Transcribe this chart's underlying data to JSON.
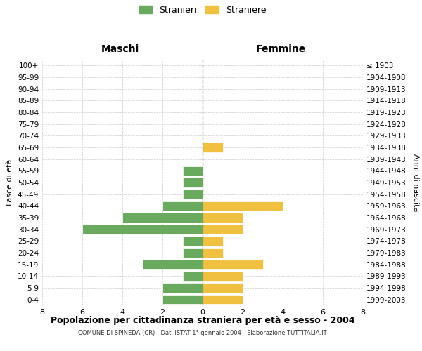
{
  "age_groups": [
    "100+",
    "95-99",
    "90-94",
    "85-89",
    "80-84",
    "75-79",
    "70-74",
    "65-69",
    "60-64",
    "55-59",
    "50-54",
    "45-49",
    "40-44",
    "35-39",
    "30-34",
    "25-29",
    "20-24",
    "15-19",
    "10-14",
    "5-9",
    "0-4"
  ],
  "birth_years": [
    "≤ 1903",
    "1904-1908",
    "1909-1913",
    "1914-1918",
    "1919-1923",
    "1924-1928",
    "1929-1933",
    "1934-1938",
    "1939-1943",
    "1944-1948",
    "1949-1953",
    "1954-1958",
    "1959-1963",
    "1964-1968",
    "1969-1973",
    "1974-1978",
    "1979-1983",
    "1984-1988",
    "1989-1993",
    "1994-1998",
    "1999-2003"
  ],
  "maschi": [
    0,
    0,
    0,
    0,
    0,
    0,
    0,
    0,
    0,
    1,
    1,
    1,
    2,
    4,
    6,
    1,
    1,
    3,
    1,
    2,
    2
  ],
  "femmine": [
    0,
    0,
    0,
    0,
    0,
    0,
    0,
    1,
    0,
    0,
    0,
    0,
    4,
    2,
    2,
    1,
    1,
    3,
    2,
    2,
    2
  ],
  "maschi_color": "#6aaa5e",
  "femmine_color": "#f0c040",
  "title": "Popolazione per cittadinanza straniera per età e sesso - 2004",
  "subtitle": "COMUNE DI SPINEDA (CR) - Dati ISTAT 1° gennaio 2004 - Elaborazione TUTTITALIA.IT",
  "xlabel_left": "Maschi",
  "xlabel_right": "Femmine",
  "ylabel_left": "Fasce di età",
  "ylabel_right": "Anni di nascita",
  "legend_maschi": "Stranieri",
  "legend_femmine": "Straniere",
  "xlim": 8,
  "background_color": "#ffffff",
  "grid_color": "#cccccc",
  "bar_height": 0.8
}
